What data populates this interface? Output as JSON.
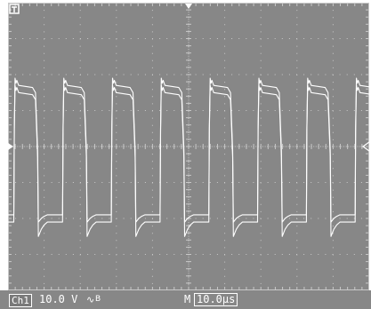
{
  "scope": {
    "trace_color": "#ffffff",
    "screen_color": "#878787",
    "grid_color": "#c8c8c8",
    "trigger_icon": "trigger-position-icon",
    "channel_level_icon": "channel-ground-arrow-icon",
    "trigger_level_icon": "trigger-level-arrow-icon"
  },
  "status": {
    "channel_label": "Ch1",
    "channel_scale": "10.0 V",
    "coupling_symbol": "∿",
    "bandwidth_symbol": "B",
    "time_prefix": "M",
    "time_scale": "10.0μs"
  },
  "chart_data": {
    "type": "line",
    "title": "",
    "xlabel": "",
    "ylabel": "",
    "x_divisions": 10,
    "y_divisions": 8,
    "x_unit": "μs",
    "y_unit": "V",
    "x_per_division": 10.0,
    "y_per_division": 10.0,
    "xlim": [
      0,
      100
    ],
    "ylim": [
      -40,
      40
    ],
    "grid": true,
    "series": [
      {
        "waveform": "square",
        "period": 13.5,
        "first_rising_edge": 1.6,
        "high_duration": 6.4,
        "high_level": 17,
        "low_level": -19,
        "overshoot": 2,
        "undershoot": -2
      },
      {
        "waveform": "square",
        "period": 13.5,
        "first_rising_edge": 1.6,
        "high_duration": 6.4,
        "high_level": 15,
        "low_level": -21,
        "overshoot": 2,
        "undershoot": -4
      }
    ]
  }
}
